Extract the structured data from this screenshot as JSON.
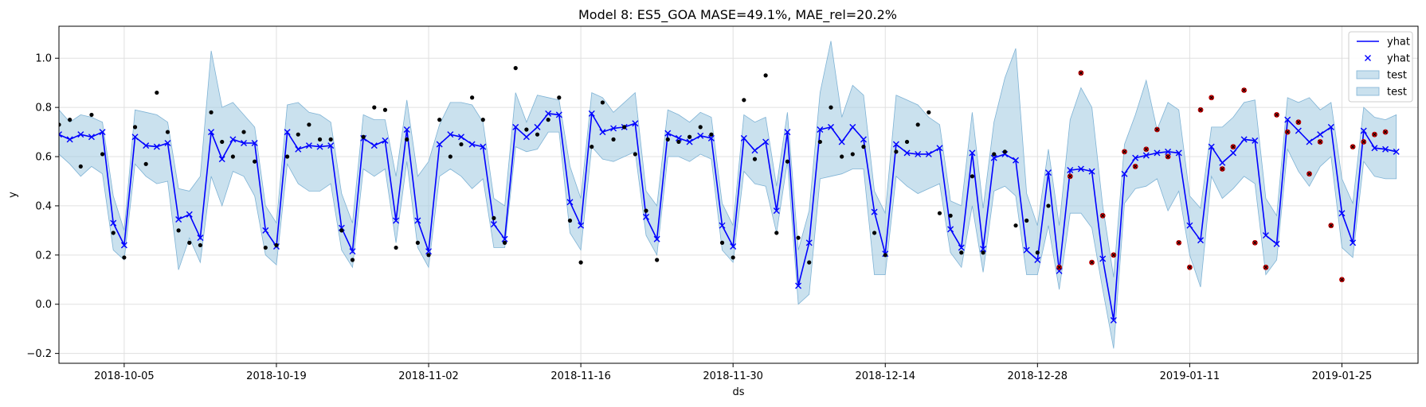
{
  "chart_data": {
    "type": "line",
    "title": "Model 8: ES5_GOA MASE=49.1%, MAE_rel=20.2%",
    "xlabel": "ds",
    "ylabel": "y",
    "xlim": [
      "2018-09-29",
      "2019-02-01"
    ],
    "ylim": [
      -0.24,
      1.13
    ],
    "grid": true,
    "legend_position": "top-right",
    "x_ticks": [
      "2018-10-05",
      "2018-10-19",
      "2018-11-02",
      "2018-11-16",
      "2018-11-30",
      "2018-12-14",
      "2018-12-28",
      "2019-01-11",
      "2019-01-25"
    ],
    "y_ticks": [
      "−0.2",
      "0.0",
      "0.2",
      "0.4",
      "0.6",
      "0.8",
      "1.0"
    ],
    "colors": {
      "yhat": "#0000ff",
      "band": "#a6cde3",
      "band_edge": "#7fb3d5",
      "actual": "#000000",
      "test_actual": "#cc0000",
      "grid": "#e0e0e0"
    },
    "legend": [
      {
        "label": "yhat",
        "marker": "line"
      },
      {
        "label": "yhat",
        "marker": "x"
      },
      {
        "label": "test",
        "marker": "patch"
      },
      {
        "label": "test",
        "marker": "patch"
      }
    ],
    "series": [
      {
        "name": "yhat",
        "start": "2018-09-29",
        "values": [
          0.69,
          0.67,
          0.69,
          0.68,
          0.7,
          0.33,
          0.24,
          0.68,
          0.645,
          0.64,
          0.655,
          0.345,
          0.365,
          0.27,
          0.7,
          0.59,
          0.67,
          0.655,
          0.655,
          0.3,
          0.235,
          0.7,
          0.63,
          0.645,
          0.64,
          0.645,
          0.31,
          0.215,
          0.675,
          0.645,
          0.665,
          0.34,
          0.71,
          0.34,
          0.215,
          0.65,
          0.69,
          0.68,
          0.65,
          0.64,
          0.325,
          0.265,
          0.72,
          0.68,
          0.72,
          0.775,
          0.77,
          0.415,
          0.32,
          0.775,
          0.7,
          0.715,
          0.72,
          0.735,
          0.355,
          0.265,
          0.695,
          0.675,
          0.66,
          0.685,
          0.675,
          0.32,
          0.235,
          0.675,
          0.625,
          0.66,
          0.38,
          0.7,
          0.075,
          0.25,
          0.71,
          0.72,
          0.66,
          0.72,
          0.67,
          0.375,
          0.205,
          0.65,
          0.615,
          0.61,
          0.61,
          0.635,
          0.305,
          0.23,
          0.615,
          0.225,
          0.595,
          0.61,
          0.585,
          0.22,
          0.18,
          0.535,
          0.135,
          0.545,
          0.55,
          0.54,
          0.185,
          -0.065,
          0.53,
          0.595,
          0.605,
          0.615,
          0.62,
          0.615,
          0.32,
          0.26,
          0.64,
          0.575,
          0.615,
          0.67,
          0.665,
          0.28,
          0.245,
          0.75,
          0.705,
          0.66,
          0.69,
          0.72,
          0.37,
          0.25,
          0.705,
          0.635,
          0.63,
          0.62
        ]
      },
      {
        "name": "test",
        "start": "2018-09-29",
        "lower": [
          0.61,
          0.57,
          0.52,
          0.56,
          0.53,
          0.22,
          0.18,
          0.57,
          0.52,
          0.49,
          0.5,
          0.14,
          0.27,
          0.17,
          0.52,
          0.4,
          0.54,
          0.52,
          0.44,
          0.2,
          0.16,
          0.57,
          0.49,
          0.46,
          0.46,
          0.49,
          0.22,
          0.15,
          0.55,
          0.52,
          0.55,
          0.25,
          0.58,
          0.23,
          0.15,
          0.52,
          0.55,
          0.52,
          0.47,
          0.51,
          0.23,
          0.23,
          0.64,
          0.62,
          0.63,
          0.7,
          0.7,
          0.29,
          0.22,
          0.64,
          0.59,
          0.58,
          0.6,
          0.62,
          0.28,
          0.2,
          0.6,
          0.6,
          0.58,
          0.61,
          0.59,
          0.22,
          0.17,
          0.54,
          0.49,
          0.48,
          0.29,
          0.58,
          0.0,
          0.04,
          0.51,
          0.52,
          0.53,
          0.55,
          0.55,
          0.12,
          0.12,
          0.52,
          0.48,
          0.45,
          0.47,
          0.49,
          0.21,
          0.15,
          0.4,
          0.13,
          0.46,
          0.48,
          0.44,
          0.12,
          0.12,
          0.32,
          0.06,
          0.37,
          0.37,
          0.31,
          0.06,
          -0.18,
          0.41,
          0.47,
          0.48,
          0.51,
          0.38,
          0.46,
          0.2,
          0.07,
          0.52,
          0.43,
          0.47,
          0.52,
          0.49,
          0.12,
          0.18,
          0.63,
          0.54,
          0.48,
          0.56,
          0.6,
          0.23,
          0.19,
          0.58,
          0.52,
          0.51,
          0.51
        ],
        "upper": [
          0.79,
          0.74,
          0.77,
          0.76,
          0.74,
          0.44,
          0.3,
          0.79,
          0.78,
          0.77,
          0.74,
          0.47,
          0.46,
          0.52,
          1.03,
          0.8,
          0.82,
          0.77,
          0.72,
          0.4,
          0.33,
          0.81,
          0.82,
          0.78,
          0.77,
          0.74,
          0.45,
          0.33,
          0.77,
          0.75,
          0.75,
          0.52,
          0.83,
          0.52,
          0.58,
          0.73,
          0.82,
          0.82,
          0.81,
          0.74,
          0.43,
          0.4,
          0.86,
          0.74,
          0.85,
          0.84,
          0.83,
          0.56,
          0.43,
          0.86,
          0.84,
          0.78,
          0.82,
          0.86,
          0.46,
          0.4,
          0.79,
          0.77,
          0.74,
          0.78,
          0.76,
          0.41,
          0.32,
          0.77,
          0.74,
          0.76,
          0.48,
          0.78,
          0.22,
          0.38,
          0.86,
          1.07,
          0.76,
          0.89,
          0.85,
          0.46,
          0.37,
          0.85,
          0.83,
          0.81,
          0.76,
          0.73,
          0.42,
          0.4,
          0.78,
          0.39,
          0.74,
          0.92,
          1.04,
          0.45,
          0.32,
          0.63,
          0.32,
          0.75,
          0.88,
          0.8,
          0.4,
          0.11,
          0.65,
          0.77,
          0.91,
          0.71,
          0.82,
          0.79,
          0.44,
          0.39,
          0.72,
          0.72,
          0.76,
          0.82,
          0.83,
          0.43,
          0.36,
          0.84,
          0.82,
          0.84,
          0.79,
          0.82,
          0.51,
          0.41,
          0.8,
          0.76,
          0.75,
          0.77
        ]
      },
      {
        "name": "y",
        "points": [
          [
            "2018-09-29",
            0.73
          ],
          [
            "2018-09-30",
            0.75
          ],
          [
            "2018-10-01",
            0.56
          ],
          [
            "2018-10-02",
            0.77
          ],
          [
            "2018-10-03",
            0.61
          ],
          [
            "2018-10-04",
            0.29
          ],
          [
            "2018-10-05",
            0.19
          ],
          [
            "2018-10-06",
            0.72
          ],
          [
            "2018-10-07",
            0.57
          ],
          [
            "2018-10-08",
            0.86
          ],
          [
            "2018-10-09",
            0.7
          ],
          [
            "2018-10-10",
            0.3
          ],
          [
            "2018-10-11",
            0.25
          ],
          [
            "2018-10-12",
            0.24
          ],
          [
            "2018-10-13",
            0.78
          ],
          [
            "2018-10-14",
            0.66
          ],
          [
            "2018-10-15",
            0.6
          ],
          [
            "2018-10-16",
            0.7
          ],
          [
            "2018-10-17",
            0.58
          ],
          [
            "2018-10-18",
            0.23
          ],
          [
            "2018-10-19",
            0.24
          ],
          [
            "2018-10-20",
            0.6
          ],
          [
            "2018-10-21",
            0.69
          ],
          [
            "2018-10-22",
            0.73
          ],
          [
            "2018-10-23",
            0.67
          ],
          [
            "2018-10-24",
            0.67
          ],
          [
            "2018-10-25",
            0.3
          ],
          [
            "2018-10-26",
            0.18
          ],
          [
            "2018-10-27",
            0.68
          ],
          [
            "2018-10-28",
            0.8
          ],
          [
            "2018-10-29",
            0.79
          ],
          [
            "2018-10-30",
            0.23
          ],
          [
            "2018-10-31",
            0.67
          ],
          [
            "2018-11-01",
            0.25
          ],
          [
            "2018-11-02",
            0.2
          ],
          [
            "2018-11-03",
            0.75
          ],
          [
            "2018-11-04",
            0.6
          ],
          [
            "2018-11-05",
            0.65
          ],
          [
            "2018-11-06",
            0.84
          ],
          [
            "2018-11-07",
            0.75
          ],
          [
            "2018-11-08",
            0.35
          ],
          [
            "2018-11-09",
            0.25
          ],
          [
            "2018-11-10",
            0.96
          ],
          [
            "2018-11-11",
            0.71
          ],
          [
            "2018-11-12",
            0.69
          ],
          [
            "2018-11-13",
            0.75
          ],
          [
            "2018-11-14",
            0.84
          ],
          [
            "2018-11-15",
            0.34
          ],
          [
            "2018-11-16",
            0.17
          ],
          [
            "2018-11-17",
            0.64
          ],
          [
            "2018-11-18",
            0.82
          ],
          [
            "2018-11-19",
            0.67
          ],
          [
            "2018-11-20",
            0.72
          ],
          [
            "2018-11-21",
            0.61
          ],
          [
            "2018-11-22",
            0.38
          ],
          [
            "2018-11-23",
            0.18
          ],
          [
            "2018-11-24",
            0.67
          ],
          [
            "2018-11-25",
            0.66
          ],
          [
            "2018-11-26",
            0.68
          ],
          [
            "2018-11-27",
            0.72
          ],
          [
            "2018-11-28",
            0.69
          ],
          [
            "2018-11-29",
            0.25
          ],
          [
            "2018-11-30",
            0.19
          ],
          [
            "2018-12-01",
            0.83
          ],
          [
            "2018-12-02",
            0.59
          ],
          [
            "2018-12-03",
            0.93
          ],
          [
            "2018-12-04",
            0.29
          ],
          [
            "2018-12-05",
            0.58
          ],
          [
            "2018-12-06",
            0.27
          ],
          [
            "2018-12-07",
            0.17
          ],
          [
            "2018-12-08",
            0.66
          ],
          [
            "2018-12-09",
            0.8
          ],
          [
            "2018-12-10",
            0.6
          ],
          [
            "2018-12-11",
            0.61
          ],
          [
            "2018-12-12",
            0.64
          ],
          [
            "2018-12-13",
            0.29
          ],
          [
            "2018-12-14",
            0.2
          ],
          [
            "2018-12-15",
            0.62
          ],
          [
            "2018-12-16",
            0.66
          ],
          [
            "2018-12-17",
            0.73
          ],
          [
            "2018-12-18",
            0.78
          ],
          [
            "2018-12-19",
            0.37
          ],
          [
            "2018-12-20",
            0.36
          ],
          [
            "2018-12-21",
            0.21
          ],
          [
            "2018-12-22",
            0.52
          ],
          [
            "2018-12-23",
            0.21
          ],
          [
            "2018-12-24",
            0.61
          ],
          [
            "2018-12-25",
            0.62
          ],
          [
            "2018-12-26",
            0.32
          ],
          [
            "2018-12-27",
            0.34
          ],
          [
            "2018-12-28",
            0.21
          ],
          [
            "2018-12-29",
            0.4
          ]
        ]
      },
      {
        "name": "test_y",
        "points": [
          [
            "2018-12-30",
            0.15
          ],
          [
            "2018-12-31",
            0.52
          ],
          [
            "2019-01-01",
            0.94
          ],
          [
            "2019-01-02",
            0.17
          ],
          [
            "2019-01-03",
            0.36
          ],
          [
            "2019-01-04",
            0.2
          ],
          [
            "2019-01-05",
            0.62
          ],
          [
            "2019-01-06",
            0.56
          ],
          [
            "2019-01-07",
            0.63
          ],
          [
            "2019-01-08",
            0.71
          ],
          [
            "2019-01-09",
            0.6
          ],
          [
            "2019-01-10",
            0.25
          ],
          [
            "2019-01-11",
            0.15
          ],
          [
            "2019-01-12",
            0.79
          ],
          [
            "2019-01-13",
            0.84
          ],
          [
            "2019-01-14",
            0.55
          ],
          [
            "2019-01-15",
            0.64
          ],
          [
            "2019-01-16",
            0.87
          ],
          [
            "2019-01-17",
            0.25
          ],
          [
            "2019-01-18",
            0.15
          ],
          [
            "2019-01-19",
            0.77
          ],
          [
            "2019-01-20",
            0.7
          ],
          [
            "2019-01-21",
            0.74
          ],
          [
            "2019-01-22",
            0.53
          ],
          [
            "2019-01-23",
            0.66
          ],
          [
            "2019-01-24",
            0.32
          ],
          [
            "2019-01-25",
            0.1
          ],
          [
            "2019-01-26",
            0.64
          ],
          [
            "2019-01-27",
            0.66
          ],
          [
            "2019-01-28",
            0.69
          ],
          [
            "2019-01-29",
            0.7
          ]
        ]
      }
    ]
  }
}
